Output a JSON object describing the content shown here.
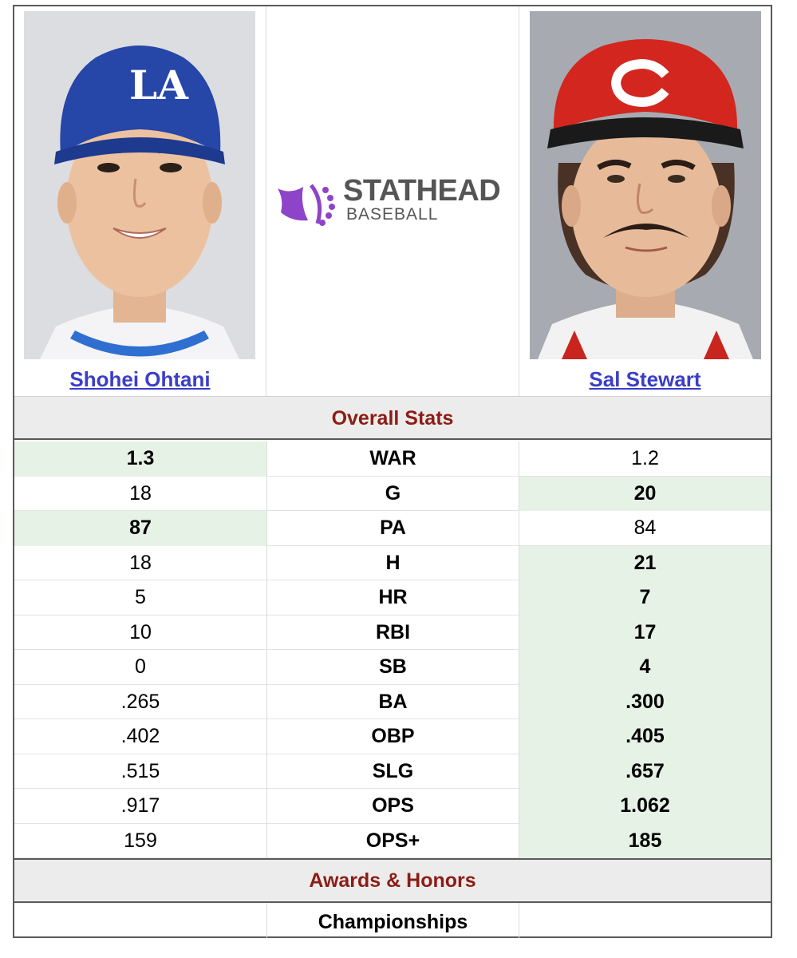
{
  "players": {
    "left": {
      "name": "Shohei Ohtani",
      "cap_logo": "LA"
    },
    "right": {
      "name": "Sal Stewart",
      "cap_logo": "C"
    }
  },
  "logo": {
    "top": "STATHEAD",
    "bottom": "BASEBALL"
  },
  "colors": {
    "section_title": "#8c1d14",
    "link": "#3a3ec7",
    "leader_bg": "#e6f2e6",
    "header_bg": "#ececec"
  },
  "overall_title": "Overall Stats",
  "stats": [
    {
      "stat": "WAR",
      "left": "1.3",
      "right": "1.2",
      "leader": "left"
    },
    {
      "stat": "G",
      "left": "18",
      "right": "20",
      "leader": "right"
    },
    {
      "stat": "PA",
      "left": "87",
      "right": "84",
      "leader": "left"
    },
    {
      "stat": "H",
      "left": "18",
      "right": "21",
      "leader": "right"
    },
    {
      "stat": "HR",
      "left": "5",
      "right": "7",
      "leader": "right"
    },
    {
      "stat": "RBI",
      "left": "10",
      "right": "17",
      "leader": "right"
    },
    {
      "stat": "SB",
      "left": "0",
      "right": "4",
      "leader": "right"
    },
    {
      "stat": "BA",
      "left": ".265",
      "right": ".300",
      "leader": "right"
    },
    {
      "stat": "OBP",
      "left": ".402",
      "right": ".405",
      "leader": "right"
    },
    {
      "stat": "SLG",
      "left": ".515",
      "right": ".657",
      "leader": "right"
    },
    {
      "stat": "OPS",
      "left": ".917",
      "right": "1.062",
      "leader": "right"
    },
    {
      "stat": "OPS+",
      "left": "159",
      "right": "185",
      "leader": "right"
    }
  ],
  "awards_title": "Awards & Honors",
  "awards": {
    "championships_label": "Championships"
  }
}
